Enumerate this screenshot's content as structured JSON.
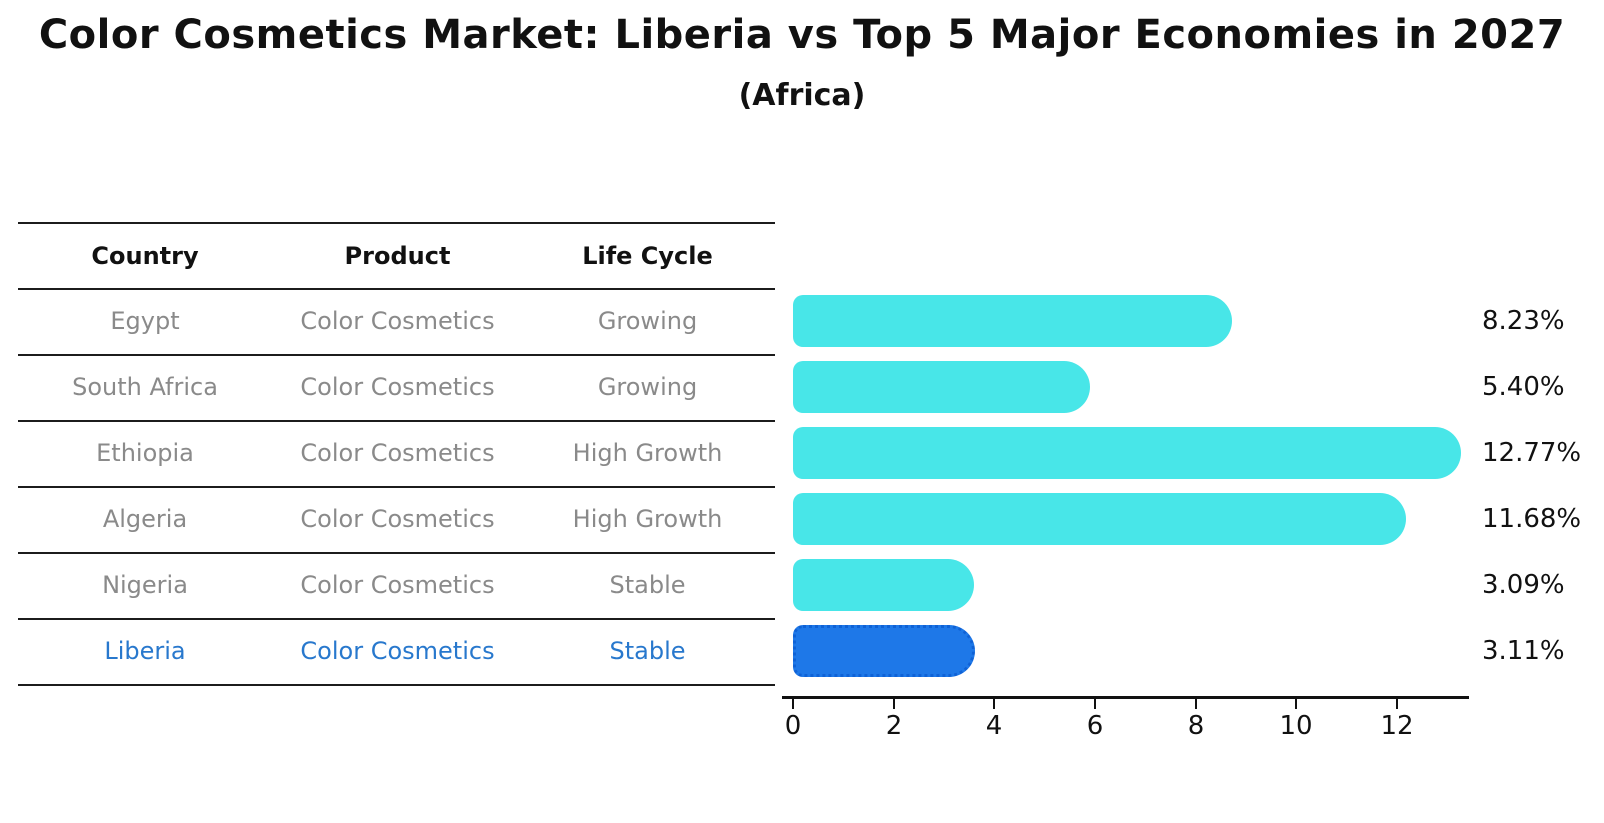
{
  "title": "Color Cosmetics Market: Liberia vs Top 5 Major Economies in 2027",
  "subtitle": "(Africa)",
  "table": {
    "headers": [
      "Country",
      "Product",
      "Life Cycle"
    ],
    "rows": [
      {
        "country": "Egypt",
        "product": "Color Cosmetics",
        "life_cycle": "Growing",
        "highlight": false
      },
      {
        "country": "South Africa",
        "product": "Color Cosmetics",
        "life_cycle": "Growing",
        "highlight": false
      },
      {
        "country": "Ethiopia",
        "product": "Color Cosmetics",
        "life_cycle": "High Growth",
        "highlight": false
      },
      {
        "country": "Algeria",
        "product": "Color Cosmetics",
        "life_cycle": "High Growth",
        "highlight": false
      },
      {
        "country": "Nigeria",
        "product": "Color Cosmetics",
        "life_cycle": "Stable",
        "highlight": false
      },
      {
        "country": "Liberia",
        "product": "Color Cosmetics",
        "life_cycle": "Stable",
        "highlight": true
      }
    ]
  },
  "chart_data": {
    "type": "bar",
    "orientation": "horizontal",
    "categories": [
      "Egypt",
      "South Africa",
      "Ethiopia",
      "Algeria",
      "Nigeria",
      "Liberia"
    ],
    "values": [
      8.23,
      5.4,
      12.77,
      11.68,
      3.09,
      3.11
    ],
    "labels": [
      "8.23%",
      "5.40%",
      "12.77%",
      "11.68%",
      "3.09%",
      "3.11%"
    ],
    "unit": "%",
    "x_ticks": [
      0,
      2,
      4,
      6,
      8,
      10,
      12
    ],
    "xlim": [
      0,
      13.43
    ],
    "grid": false,
    "legend": false,
    "highlight_index": 5,
    "bar_color": "#48E6E8",
    "highlight_color": "#1E78E8",
    "highlight_border_color": "#0F62D6",
    "text_color": "#111111",
    "muted_text_color": "#8a8a8a",
    "highlight_text_color": "#2878CD"
  }
}
